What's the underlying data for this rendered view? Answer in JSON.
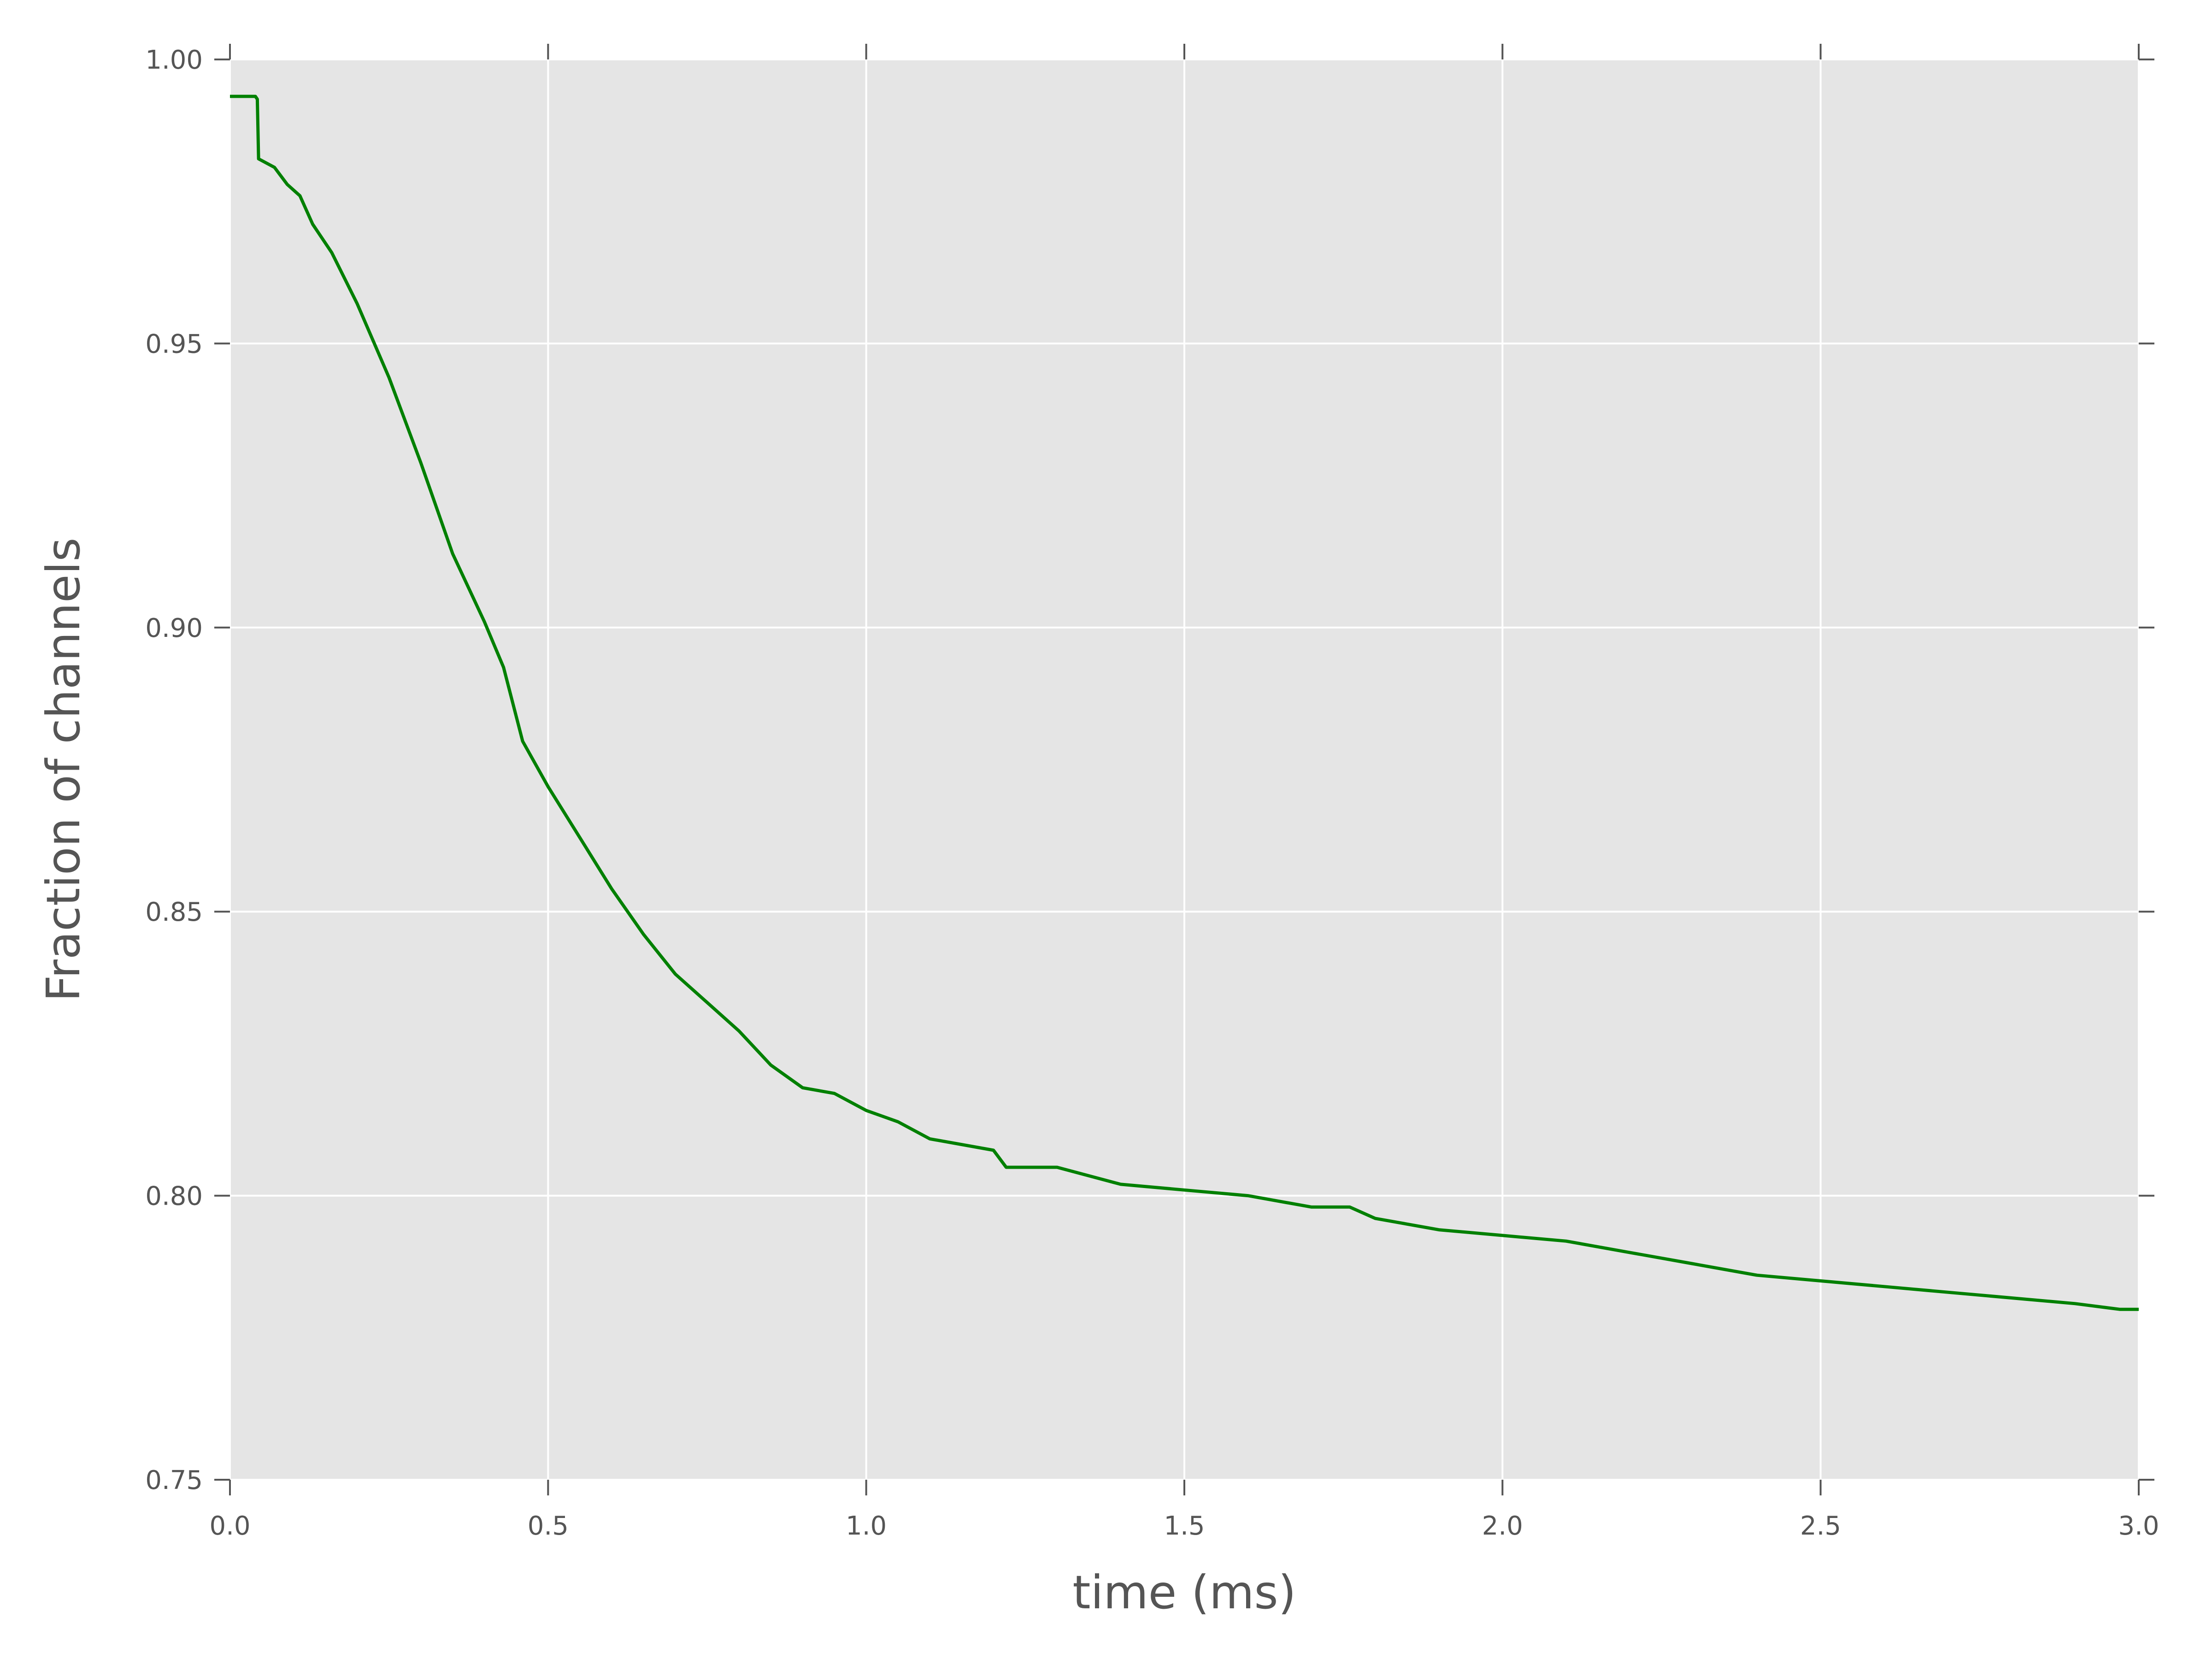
{
  "chart_data": {
    "type": "line",
    "title": "",
    "xlabel": "time (ms)",
    "ylabel": "Fraction of channels",
    "xlim": [
      0.0,
      3.0
    ],
    "ylim": [
      0.75,
      1.0
    ],
    "xticks": [
      "0.0",
      "0.5",
      "1.0",
      "1.5",
      "2.0",
      "2.5",
      "3.0"
    ],
    "yticks": [
      "0.75",
      "0.80",
      "0.85",
      "0.90",
      "0.95",
      "1.00"
    ],
    "grid": true,
    "background": "#e5e5e5",
    "series": [
      {
        "color": "#008000",
        "x": [
          0,
          0.04,
          0.043,
          0.045,
          0.07,
          0.09,
          0.11,
          0.13,
          0.16,
          0.2,
          0.25,
          0.3,
          0.35,
          0.4,
          0.43,
          0.46,
          0.5,
          0.55,
          0.6,
          0.65,
          0.7,
          0.75,
          0.8,
          0.85,
          0.9,
          0.95,
          1.0,
          1.05,
          1.1,
          1.2,
          1.22,
          1.3,
          1.4,
          1.5,
          1.6,
          1.7,
          1.76,
          1.8,
          1.9,
          2.0,
          2.1,
          2.2,
          2.25,
          2.3,
          2.4,
          2.5,
          2.6,
          2.7,
          2.8,
          2.9,
          2.97,
          3.0
        ],
        "y": [
          0.9935,
          0.9935,
          0.993,
          0.9825,
          0.981,
          0.978,
          0.976,
          0.971,
          0.966,
          0.957,
          0.944,
          0.929,
          0.913,
          0.901,
          0.893,
          0.88,
          0.872,
          0.863,
          0.854,
          0.846,
          0.839,
          0.834,
          0.829,
          0.823,
          0.819,
          0.818,
          0.815,
          0.813,
          0.81,
          0.808,
          0.805,
          0.805,
          0.802,
          0.801,
          0.8,
          0.798,
          0.798,
          0.796,
          0.794,
          0.793,
          0.792,
          0.79,
          0.789,
          0.788,
          0.786,
          0.785,
          0.784,
          0.783,
          0.782,
          0.781,
          0.78,
          0.78
        ]
      }
    ]
  }
}
